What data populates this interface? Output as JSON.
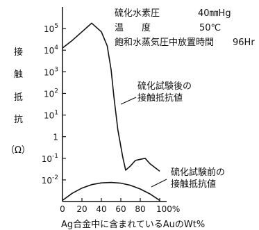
{
  "chart_data": {
    "type": "line",
    "xlabel": "Ag合金中に含まれているAuのWt%",
    "ylabel_chars": [
      "接",
      "触",
      "抵",
      "抗",
      "（Ω）"
    ],
    "x_ticks": [
      "0",
      "20",
      "40",
      "60",
      "80",
      "100%"
    ],
    "y_ticks": [
      {
        "base": "10",
        "exp": "5"
      },
      {
        "base": "10",
        "exp": "4"
      },
      {
        "base": "10",
        "exp": "3"
      },
      {
        "base": "10",
        "exp": "2"
      },
      {
        "base": "10",
        "exp": "1"
      },
      {
        "base": "1",
        "exp": ""
      },
      {
        "base": "10",
        "exp": "-1"
      },
      {
        "base": "10",
        "exp": "-2"
      }
    ],
    "xlim": [
      0,
      100
    ],
    "ylim_log10": [
      -3,
      6
    ],
    "y_scale": "log",
    "grid": false,
    "conditions": {
      "row1": {
        "label": "硫化水素圧",
        "value": "40㎜Hg"
      },
      "row2": {
        "label": "温　　度",
        "value": "50℃"
      },
      "row3": {
        "label": "飽和水蒸気圧中放置時間",
        "value": "96Hr"
      }
    },
    "series": [
      {
        "name": "硫化試験後の接触抵抗値",
        "label_lines": [
          "硫化試験後の",
          "接触抵抗値"
        ],
        "x": [
          0,
          10,
          20,
          30,
          40,
          46,
          50,
          53,
          57,
          62,
          65,
          70,
          75,
          80,
          85,
          90,
          100
        ],
        "y_log10": [
          4.1,
          4.45,
          4.85,
          5.25,
          4.85,
          4.2,
          3.1,
          1.8,
          0.3,
          -0.95,
          -1.55,
          -1.35,
          -1.1,
          -1.05,
          -1.0,
          -1.25,
          -1.6
        ]
      },
      {
        "name": "硫化試験前の接触抵抗値",
        "label_lines": [
          "硫化試験前の",
          "接触抵抗値"
        ],
        "x": [
          0,
          10,
          20,
          30,
          40,
          50,
          60,
          70,
          80,
          90,
          100
        ],
        "y_log10": [
          -2.95,
          -2.62,
          -2.38,
          -2.22,
          -2.14,
          -2.12,
          -2.15,
          -2.25,
          -2.42,
          -2.65,
          -2.95
        ]
      }
    ]
  }
}
